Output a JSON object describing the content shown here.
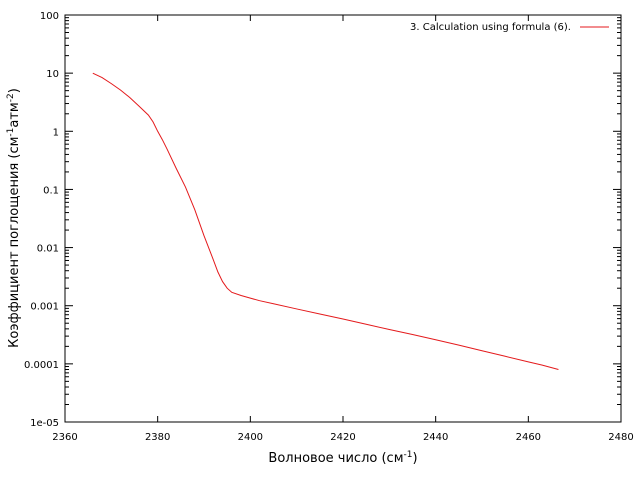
{
  "chart_data": {
    "type": "line",
    "xlabel_main": "Волновое число (см",
    "xlabel_sup": "-1",
    "xlabel_end": ")",
    "ylabel_main": "Коэффициент поглощения (см",
    "ylabel_sup1": "-1",
    "ylabel_mid": "атм",
    "ylabel_sup2": "-2",
    "ylabel_end": ")",
    "xlim": [
      2360,
      2480
    ],
    "ylim": [
      1e-05,
      100
    ],
    "yscale": "log",
    "grid": false,
    "legend_position": "top-right",
    "x_ticks": [
      2360,
      2380,
      2400,
      2420,
      2440,
      2460,
      2480
    ],
    "x_tick_labels": [
      "2360",
      "2380",
      "2400",
      "2420",
      "2440",
      "2460",
      "2480"
    ],
    "y_ticks": [
      1e-05,
      0.0001,
      0.001,
      0.01,
      0.1,
      1,
      10,
      100
    ],
    "y_tick_labels": [
      "1e-05",
      "0.0001",
      "0.001",
      "0.01",
      "0.1",
      "1",
      "10",
      "100"
    ],
    "series": [
      {
        "name": "3. Calculation using formula (6).",
        "color": "#e41a1c",
        "x": [
          2366,
          2368,
          2370,
          2372,
          2374,
          2376,
          2378,
          2379,
          2380,
          2381,
          2382,
          2384,
          2386,
          2388,
          2390,
          2392,
          2393,
          2394,
          2395,
          2396,
          2398,
          2400,
          2402,
          2405,
          2410,
          2415,
          2420,
          2425,
          2430,
          2435,
          2440,
          2445,
          2450,
          2455,
          2460,
          2463,
          2466.5
        ],
        "y": [
          10,
          8.4,
          6.6,
          5.1,
          3.8,
          2.7,
          1.9,
          1.45,
          1.0,
          0.72,
          0.5,
          0.23,
          0.11,
          0.045,
          0.016,
          0.0062,
          0.0038,
          0.0026,
          0.002,
          0.0017,
          0.0015,
          0.00135,
          0.00122,
          0.00108,
          0.00088,
          0.00072,
          0.00059,
          0.00048,
          0.00039,
          0.00032,
          0.00026,
          0.00021,
          0.000168,
          0.000135,
          0.000108,
          9.5e-05,
          8e-05
        ]
      }
    ]
  }
}
